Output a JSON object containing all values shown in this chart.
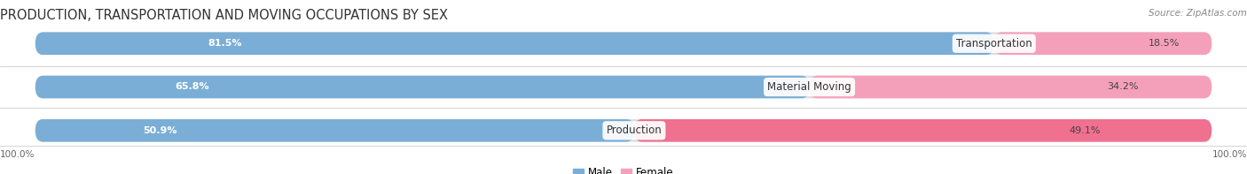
{
  "title": "PRODUCTION, TRANSPORTATION AND MOVING OCCUPATIONS BY SEX",
  "source": "Source: ZipAtlas.com",
  "categories": [
    "Transportation",
    "Material Moving",
    "Production"
  ],
  "male_pct": [
    81.5,
    65.8,
    50.9
  ],
  "female_pct": [
    18.5,
    34.2,
    49.1
  ],
  "male_color": "#7baed6",
  "female_color": "#f5a0bb",
  "female_color_prod": "#f07090",
  "bg_color": "#ffffff",
  "bar_bg_color": "#dcdcdc",
  "row_bg_color": "#eeeeee",
  "title_fontsize": 10.5,
  "source_fontsize": 7.5,
  "label_fontsize": 8.5,
  "pct_fontsize": 8,
  "axis_label_fontsize": 7.5,
  "legend_fontsize": 8.5
}
